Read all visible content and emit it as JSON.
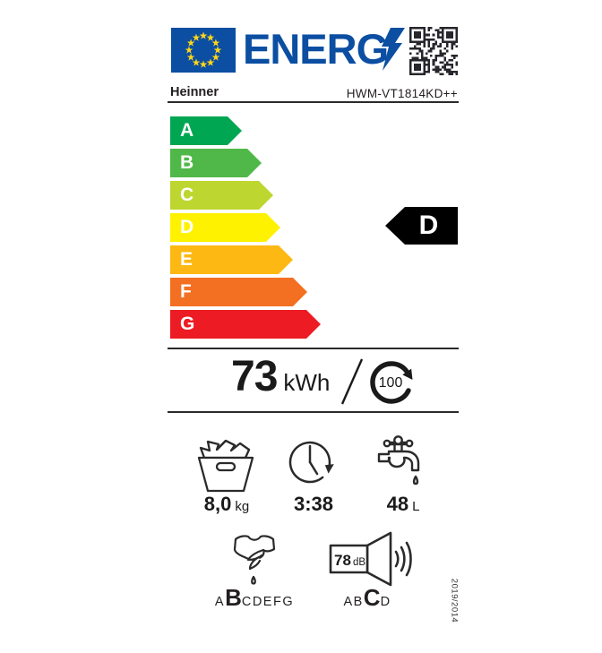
{
  "colors": {
    "brand_blue": "#0b4ea2",
    "star_yellow": "#ffd617",
    "ink_black": "#1a1a1a",
    "class_a": "#00a651",
    "class_b": "#50b848",
    "class_c": "#bed630",
    "class_d": "#fff200",
    "class_e": "#fdb813",
    "class_f": "#f36f21",
    "class_g": "#ed1c24"
  },
  "header": {
    "logo_text": "ENERG",
    "eu_flag_icon": "eu-flag",
    "lightning_icon": "lightning-bolt",
    "qr_icon": "qr-code"
  },
  "brand": {
    "supplier": "Heinner",
    "model": "HWM-VT1814KD++"
  },
  "scale": {
    "rating": "D",
    "classes": [
      {
        "label": "A",
        "color": "#00a651"
      },
      {
        "label": "B",
        "color": "#50b848"
      },
      {
        "label": "C",
        "color": "#bed630"
      },
      {
        "label": "D",
        "color": "#fff200"
      },
      {
        "label": "E",
        "color": "#fdb813"
      },
      {
        "label": "F",
        "color": "#f36f21"
      },
      {
        "label": "G",
        "color": "#ed1c24"
      }
    ]
  },
  "energy": {
    "value": "73",
    "unit": "kWh",
    "per_cycles": "100"
  },
  "metrics": {
    "capacity": {
      "value": "8,0",
      "unit": "kg",
      "icon": "laundry-basket"
    },
    "duration": {
      "value": "3:38",
      "icon": "clock-cycle"
    },
    "water": {
      "value": "48",
      "unit": "L",
      "icon": "water-tap"
    }
  },
  "spin_class": {
    "prefix": "A",
    "active": "B",
    "suffix": "CDEFG",
    "icon": "spin-dry-shirt"
  },
  "noise": {
    "value": "78",
    "unit": "dB",
    "prefix": "AB",
    "active": "C",
    "suffix": "D",
    "icon": "speaker"
  },
  "regulation": "2019/2014"
}
